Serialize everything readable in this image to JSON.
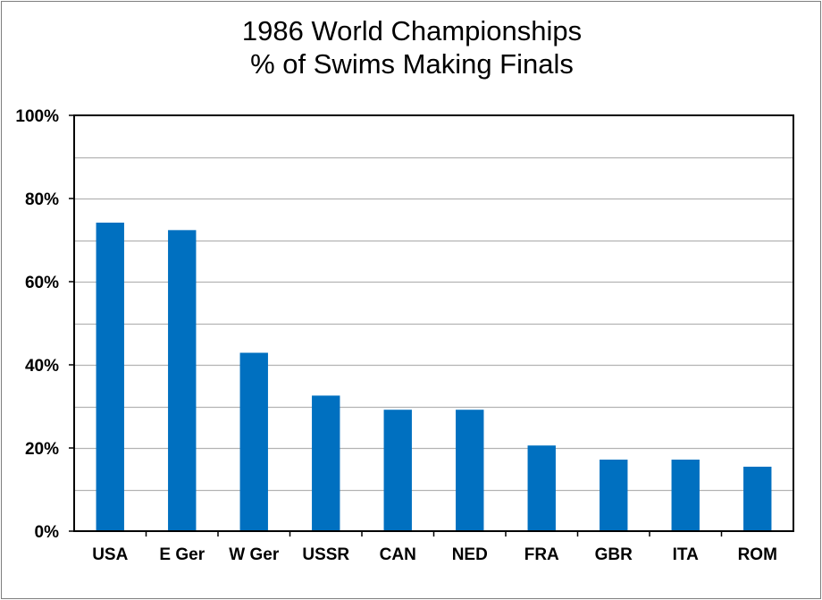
{
  "chart_data": {
    "type": "bar",
    "title_lines": [
      "1986 World Championships",
      "% of Swims Making Finals"
    ],
    "xlabel": "",
    "ylabel": "",
    "categories": [
      "USA",
      "E Ger",
      "W Ger",
      "USSR",
      "CAN",
      "NED",
      "FRA",
      "GBR",
      "ITA",
      "ROM"
    ],
    "values": [
      74.2,
      72.4,
      42.9,
      32.6,
      29.2,
      29.2,
      20.6,
      17.2,
      17.2,
      15.5
    ],
    "ylim": [
      0,
      100
    ],
    "yticks": [
      0,
      20,
      40,
      60,
      80,
      100
    ],
    "ytick_labels": [
      "0%",
      "20%",
      "40%",
      "60%",
      "80%",
      "100%"
    ],
    "minor_gridlines_every": 10,
    "grid": true,
    "legend": "none",
    "bar_color": "#0070C0"
  }
}
